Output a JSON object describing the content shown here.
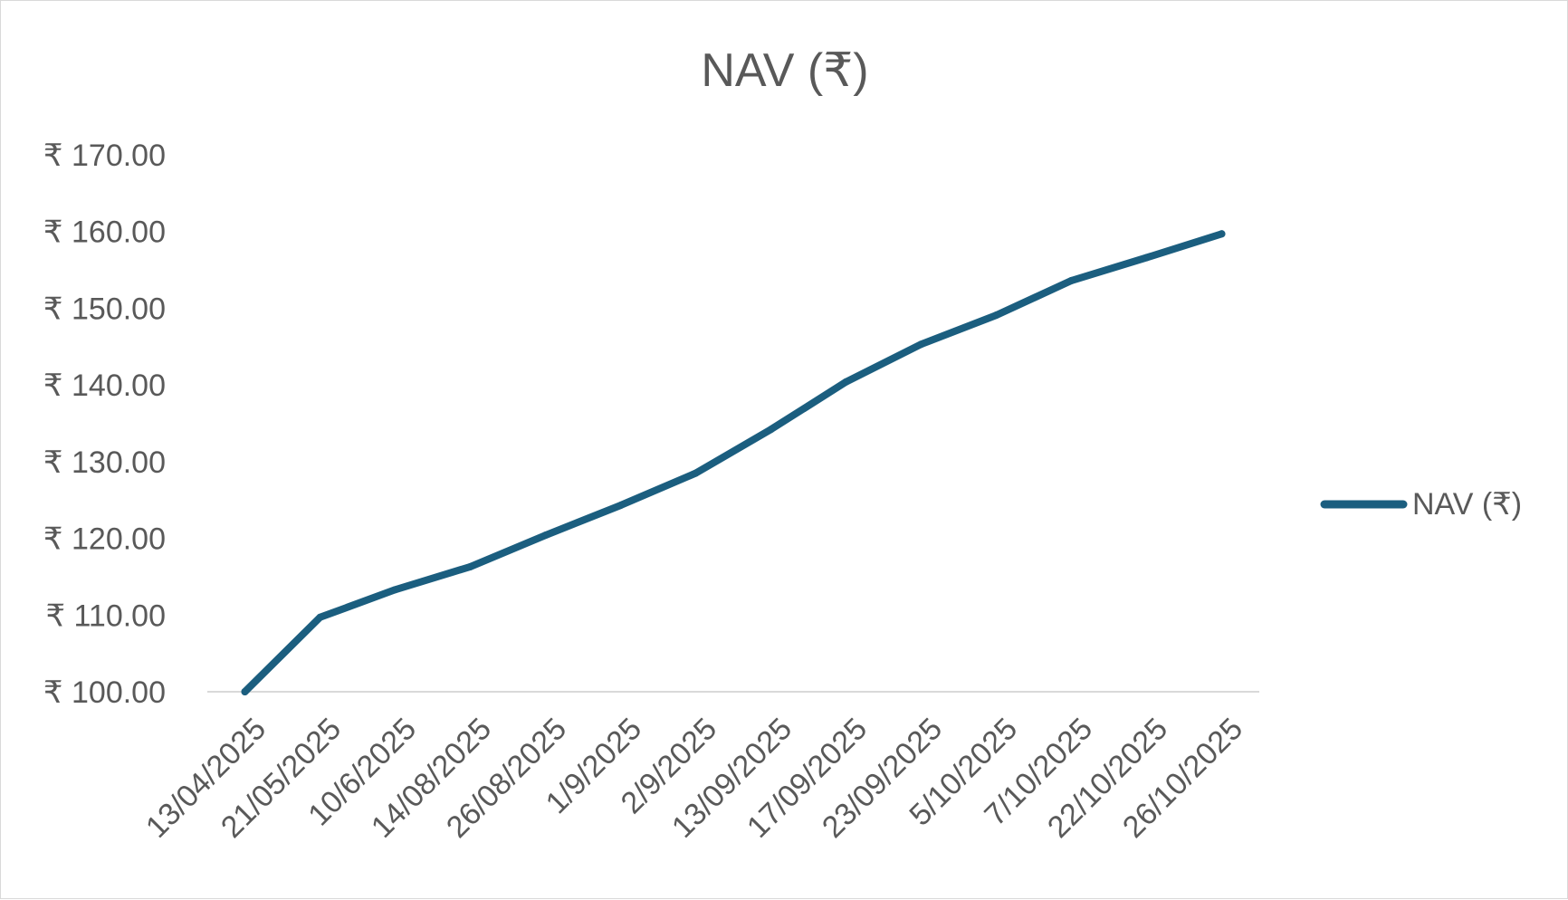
{
  "chart_data": {
    "type": "line",
    "title": "NAV (₹)",
    "xlabel": "",
    "ylabel": "",
    "categories": [
      "13/04/2025",
      "21/05/2025",
      "10/6/2025",
      "14/08/2025",
      "26/08/2025",
      "1/9/2025",
      "2/9/2025",
      "13/09/2025",
      "17/09/2025",
      "23/09/2025",
      "5/10/2025",
      "7/10/2025",
      "22/10/2025",
      "26/10/2025"
    ],
    "series": [
      {
        "name": "NAV (₹)",
        "color": "#1b5e7f",
        "values": [
          100.0,
          109.7,
          113.3,
          116.3,
          120.4,
          124.3,
          128.5,
          134.2,
          140.4,
          145.3,
          149.1,
          153.6,
          156.6,
          159.7
        ]
      }
    ],
    "ylim": [
      100,
      170
    ],
    "yticks": [
      100,
      110,
      120,
      130,
      140,
      150,
      160,
      170
    ],
    "ytick_labels": [
      "₹ 100.00",
      "₹ 110.00",
      "₹ 120.00",
      "₹ 130.00",
      "₹ 140.00",
      "₹ 150.00",
      "₹ 160.00",
      "₹ 170.00"
    ],
    "grid": false,
    "legend_position": "right"
  }
}
